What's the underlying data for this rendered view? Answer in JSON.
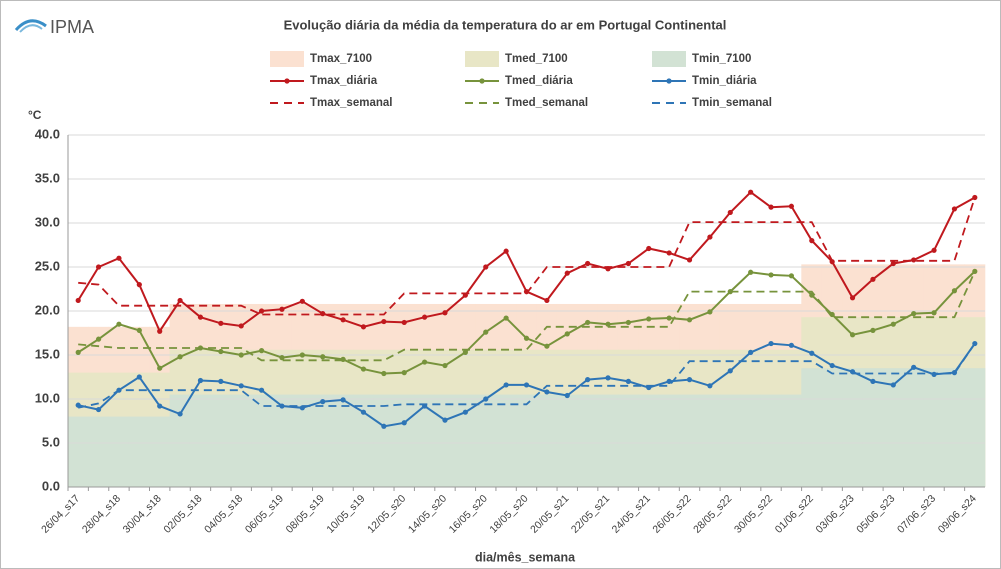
{
  "logo": "IPMA",
  "chart_data": {
    "type": "line",
    "title": "Evolução diária da média da temperatura do ar em Portugal Continental",
    "y_unit": "°C",
    "x_label": "dia/mês_semana",
    "categories": [
      "26/04_s17",
      null,
      "28/04_s18",
      null,
      "30/04_s18",
      null,
      "02/05_s18",
      null,
      "04/05_s18",
      null,
      "06/05_s19",
      null,
      "08/05_s19",
      null,
      "10/05_s19",
      null,
      "12/05_s20",
      null,
      "14/05_s20",
      null,
      "16/05_s20",
      null,
      "18/05_s20",
      null,
      "20/05_s21",
      null,
      "22/05_s21",
      null,
      "24/05_s21",
      null,
      "26/05_s22",
      null,
      "28/05_s22",
      null,
      "30/05_s22",
      null,
      "01/06_s22",
      null,
      "03/06_s23",
      null,
      "05/06_s23",
      null,
      "07/06_s23",
      null,
      "09/06_s24"
    ],
    "ylim": [
      0,
      40
    ],
    "yticks": [
      {
        "value": 0,
        "label": "0.0"
      },
      {
        "value": 5,
        "label": "5.0"
      },
      {
        "value": 10,
        "label": "10.0"
      },
      {
        "value": 15,
        "label": "15.0"
      },
      {
        "value": 20,
        "label": "20.0"
      },
      {
        "value": 25,
        "label": "25.0"
      },
      {
        "value": 30,
        "label": "30.0"
      },
      {
        "value": 35,
        "label": "35.0"
      },
      {
        "value": 40,
        "label": "40.0"
      }
    ],
    "grid": true,
    "series": [
      {
        "name": "Tmax_7100",
        "style": "area",
        "color": "#fbe1d1",
        "values": [
          18.2,
          18.2,
          18.2,
          18.2,
          18.2,
          20.8,
          20.8,
          20.8,
          20.8,
          20.8,
          20.8,
          20.8,
          20.8,
          20.8,
          20.8,
          20.8,
          20.8,
          20.8,
          20.8,
          20.8,
          20.8,
          20.8,
          20.8,
          20.8,
          20.8,
          20.8,
          20.8,
          20.8,
          20.8,
          20.8,
          20.8,
          20.8,
          20.8,
          20.8,
          20.8,
          20.8,
          25.3,
          25.3,
          25.3,
          25.3,
          25.3,
          25.3,
          25.3,
          25.3,
          25.3
        ]
      },
      {
        "name": "Tmed_7100",
        "style": "area",
        "color": "#e8e6c6",
        "values": [
          13.0,
          13.0,
          13.0,
          13.0,
          13.0,
          15.6,
          15.6,
          15.6,
          15.6,
          15.6,
          15.6,
          15.6,
          15.6,
          15.6,
          15.6,
          15.6,
          15.6,
          15.6,
          15.6,
          15.6,
          15.6,
          15.6,
          15.6,
          15.6,
          15.6,
          15.6,
          15.6,
          15.6,
          15.6,
          15.6,
          15.6,
          15.6,
          15.6,
          15.6,
          15.6,
          15.6,
          19.3,
          19.3,
          19.3,
          19.3,
          19.3,
          19.3,
          19.3,
          19.3,
          19.3
        ]
      },
      {
        "name": "Tmin_7100",
        "style": "area",
        "color": "#d2e2d4",
        "values": [
          8.0,
          8.0,
          8.0,
          8.0,
          8.0,
          10.5,
          10.5,
          10.5,
          10.5,
          10.5,
          10.5,
          10.5,
          10.5,
          10.5,
          10.5,
          10.5,
          10.5,
          10.5,
          10.5,
          10.5,
          10.5,
          10.5,
          10.5,
          10.5,
          10.5,
          10.5,
          10.5,
          10.5,
          10.5,
          10.5,
          10.5,
          10.5,
          10.5,
          10.5,
          10.5,
          10.5,
          13.5,
          13.5,
          13.5,
          13.5,
          13.5,
          13.5,
          13.5,
          13.5,
          13.5
        ]
      },
      {
        "name": "Tmax_diária",
        "style": "marker",
        "color": "#c0191e",
        "values": [
          21.2,
          25.0,
          26.0,
          23.0,
          17.7,
          21.2,
          19.3,
          18.6,
          18.3,
          20.0,
          20.2,
          21.1,
          19.7,
          19.0,
          18.2,
          18.8,
          18.7,
          19.3,
          19.8,
          21.8,
          25.0,
          26.8,
          22.2,
          21.2,
          24.3,
          25.4,
          24.8,
          25.4,
          27.1,
          26.6,
          25.8,
          28.4,
          31.2,
          33.5,
          31.8,
          31.9,
          28.0,
          25.6,
          21.5,
          23.6,
          25.4,
          25.8,
          26.9,
          31.6,
          32.9
        ]
      },
      {
        "name": "Tmed_diária",
        "style": "marker",
        "color": "#77933c",
        "values": [
          15.3,
          16.8,
          18.5,
          17.8,
          13.5,
          14.8,
          15.8,
          15.4,
          15.0,
          15.5,
          14.7,
          15.0,
          14.8,
          14.5,
          13.4,
          12.9,
          13.0,
          14.2,
          13.8,
          15.3,
          17.6,
          19.2,
          16.9,
          16.0,
          17.4,
          18.7,
          18.5,
          18.7,
          19.1,
          19.2,
          19.0,
          19.9,
          22.2,
          24.4,
          24.1,
          24.0,
          21.8,
          19.6,
          17.3,
          17.8,
          18.5,
          19.7,
          19.8,
          22.3,
          24.5
        ]
      },
      {
        "name": "Tmin_diária",
        "style": "marker",
        "color": "#2e75b6",
        "values": [
          9.3,
          8.8,
          11.0,
          12.5,
          9.2,
          8.3,
          12.1,
          12.0,
          11.5,
          11.0,
          9.2,
          9.0,
          9.7,
          9.9,
          8.5,
          6.9,
          7.3,
          9.2,
          7.6,
          8.5,
          10.0,
          11.6,
          11.6,
          10.8,
          10.4,
          12.2,
          12.4,
          12.0,
          11.3,
          12.0,
          12.2,
          11.5,
          13.2,
          15.3,
          16.3,
          16.1,
          15.2,
          13.8,
          13.1,
          12.0,
          11.6,
          13.6,
          12.8,
          13.0,
          16.3
        ]
      },
      {
        "name": "Tmax_semanal",
        "style": "dashed",
        "color": "#c0191e",
        "values": [
          23.2,
          23.0,
          20.6,
          20.6,
          20.6,
          20.6,
          20.6,
          20.6,
          20.6,
          19.6,
          19.6,
          19.6,
          19.6,
          19.6,
          19.6,
          19.6,
          22.0,
          22.0,
          22.0,
          22.0,
          22.0,
          22.0,
          22.0,
          25.0,
          25.0,
          25.0,
          25.0,
          25.0,
          25.0,
          25.0,
          30.1,
          30.1,
          30.1,
          30.1,
          30.1,
          30.1,
          30.1,
          25.7,
          25.7,
          25.7,
          25.7,
          25.7,
          25.7,
          25.7,
          32.9
        ]
      },
      {
        "name": "Tmed_semanal",
        "style": "dashed",
        "color": "#77933c",
        "values": [
          16.2,
          16.0,
          15.8,
          15.8,
          15.8,
          15.8,
          15.8,
          15.8,
          15.8,
          14.4,
          14.4,
          14.4,
          14.4,
          14.4,
          14.4,
          14.4,
          15.6,
          15.6,
          15.6,
          15.6,
          15.6,
          15.6,
          15.6,
          18.2,
          18.2,
          18.2,
          18.2,
          18.2,
          18.2,
          18.2,
          22.2,
          22.2,
          22.2,
          22.2,
          22.2,
          22.2,
          22.2,
          19.3,
          19.3,
          19.3,
          19.3,
          19.3,
          19.3,
          19.3,
          24.5
        ]
      },
      {
        "name": "Tmin_semanal",
        "style": "dashed",
        "color": "#2e75b6",
        "values": [
          9.0,
          9.5,
          11.0,
          11.0,
          11.0,
          11.0,
          11.0,
          11.0,
          11.0,
          9.2,
          9.2,
          9.2,
          9.2,
          9.2,
          9.2,
          9.2,
          9.4,
          9.4,
          9.4,
          9.4,
          9.4,
          9.4,
          9.4,
          11.5,
          11.5,
          11.5,
          11.5,
          11.5,
          11.5,
          11.5,
          14.3,
          14.3,
          14.3,
          14.3,
          14.3,
          14.3,
          14.3,
          12.9,
          12.9,
          12.9,
          12.9,
          12.9,
          12.9,
          12.9,
          16.3
        ]
      }
    ]
  }
}
